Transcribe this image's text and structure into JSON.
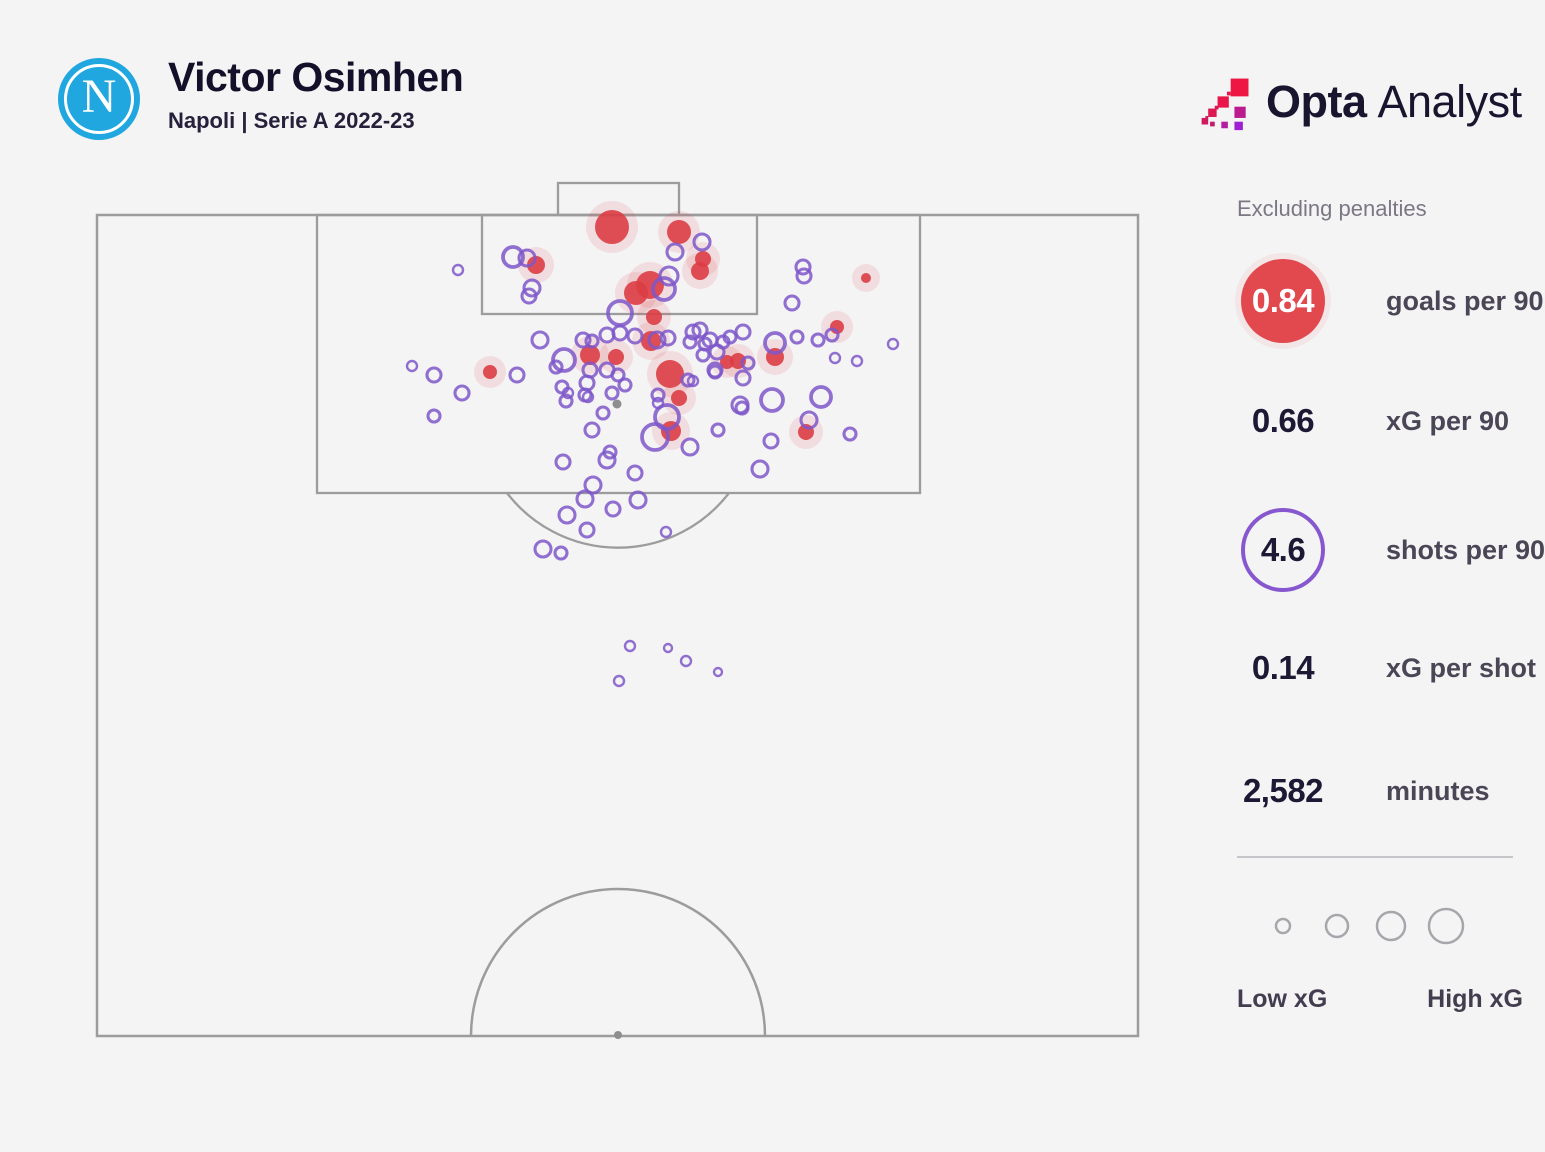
{
  "header": {
    "title": "Victor Osimhen",
    "subtitle": "Napoli | Serie A 2022-23",
    "badge_letter": "N"
  },
  "brand": {
    "name_bold": "Opta",
    "name_light": "Analyst"
  },
  "stats": {
    "context_label": "Excluding penalties",
    "items": [
      {
        "value": "0.84",
        "label": "goals per 90",
        "marker": "red-filled-circle"
      },
      {
        "value": "0.66",
        "label": "xG per 90",
        "marker": "none"
      },
      {
        "value": "4.6",
        "label": "shots per 90",
        "marker": "purple-ring-circle"
      },
      {
        "value": "0.14",
        "label": "xG per shot",
        "marker": "none"
      },
      {
        "value": "2,582",
        "label": "minutes",
        "marker": "none"
      }
    ]
  },
  "legend": {
    "low_label": "Low xG",
    "high_label": "High xG",
    "circle_radii": [
      7,
      11,
      14,
      17
    ]
  },
  "colors": {
    "background": "#f4f4f5",
    "pitch_line": "#9c9c9c",
    "goal_red": "#dc3d45",
    "shot_purple": "#7e57c9",
    "spot_gray": "#8e8e8e",
    "napoli_blue": "#21a7e0",
    "accent_dark": "#1d1834",
    "label_gray": "#4b4656",
    "muted_gray": "#7c7784",
    "legend_gray": "#a8a6ab"
  },
  "chart_data": {
    "type": "scatter",
    "title": "Victor Osimhen non-penalty shot map, Serie A 2022-23",
    "coordinate_space": "screen pixels of 1536x1152 canvas, attacking toward top goal",
    "marker_encoding": "radius = xG of shot; red filled = goal; purple ring = non-goal shot",
    "penalty_spot": [
      617,
      404
    ],
    "center_spot": [
      618,
      1035
    ],
    "goals": [
      [
        612,
        227,
        17
      ],
      [
        679,
        232,
        12
      ],
      [
        536,
        265,
        9
      ],
      [
        703,
        259,
        8
      ],
      [
        700,
        271,
        9
      ],
      [
        650,
        285,
        14
      ],
      [
        636,
        293,
        12
      ],
      [
        654,
        317,
        8
      ],
      [
        651,
        341,
        10
      ],
      [
        590,
        355,
        10
      ],
      [
        616,
        357,
        8
      ],
      [
        490,
        372,
        7
      ],
      [
        670,
        374,
        14
      ],
      [
        679,
        398,
        8
      ],
      [
        671,
        431,
        10
      ],
      [
        738,
        361,
        8
      ],
      [
        775,
        357,
        9
      ],
      [
        837,
        327,
        7
      ],
      [
        866,
        278,
        5
      ],
      [
        806,
        432,
        8
      ],
      [
        727,
        362,
        7
      ]
    ],
    "shots": [
      [
        513,
        257,
        10
      ],
      [
        527,
        258,
        8
      ],
      [
        458,
        270,
        5
      ],
      [
        532,
        288,
        8
      ],
      [
        529,
        296,
        7
      ],
      [
        675,
        252,
        8
      ],
      [
        702,
        242,
        8
      ],
      [
        669,
        276,
        9
      ],
      [
        664,
        289,
        11
      ],
      [
        620,
        313,
        12
      ],
      [
        803,
        267,
        7
      ],
      [
        804,
        276,
        7
      ],
      [
        792,
        303,
        7
      ],
      [
        893,
        344,
        5
      ],
      [
        583,
        340,
        7
      ],
      [
        592,
        341,
        6
      ],
      [
        607,
        335,
        7
      ],
      [
        620,
        333,
        7
      ],
      [
        635,
        336,
        7
      ],
      [
        657,
        340,
        8
      ],
      [
        668,
        338,
        7
      ],
      [
        693,
        332,
        7
      ],
      [
        700,
        330,
        7
      ],
      [
        710,
        340,
        7
      ],
      [
        717,
        352,
        7
      ],
      [
        723,
        342,
        6
      ],
      [
        730,
        337,
        6
      ],
      [
        743,
        332,
        7
      ],
      [
        690,
        342,
        6
      ],
      [
        705,
        344,
        6
      ],
      [
        703,
        355,
        6
      ],
      [
        748,
        363,
        6
      ],
      [
        743,
        378,
        7
      ],
      [
        715,
        372,
        6
      ],
      [
        693,
        381,
        5
      ],
      [
        775,
        343,
        10
      ],
      [
        797,
        337,
        6
      ],
      [
        818,
        340,
        6
      ],
      [
        832,
        335,
        6
      ],
      [
        835,
        358,
        5
      ],
      [
        857,
        361,
        5
      ],
      [
        412,
        366,
        5
      ],
      [
        434,
        375,
        7
      ],
      [
        462,
        393,
        7
      ],
      [
        434,
        416,
        6
      ],
      [
        517,
        375,
        7
      ],
      [
        540,
        340,
        8
      ],
      [
        564,
        360,
        11
      ],
      [
        556,
        367,
        6
      ],
      [
        562,
        387,
        6
      ],
      [
        568,
        393,
        5
      ],
      [
        566,
        401,
        6
      ],
      [
        587,
        383,
        7
      ],
      [
        585,
        395,
        6
      ],
      [
        592,
        430,
        7
      ],
      [
        563,
        462,
        7
      ],
      [
        590,
        370,
        7
      ],
      [
        607,
        370,
        7
      ],
      [
        618,
        375,
        6
      ],
      [
        625,
        385,
        6
      ],
      [
        612,
        393,
        6
      ],
      [
        603,
        413,
        6
      ],
      [
        588,
        397,
        5
      ],
      [
        658,
        395,
        6
      ],
      [
        658,
        403,
        5
      ],
      [
        688,
        380,
        6
      ],
      [
        667,
        417,
        12
      ],
      [
        655,
        437,
        13
      ],
      [
        690,
        447,
        8
      ],
      [
        715,
        370,
        7
      ],
      [
        740,
        405,
        8
      ],
      [
        772,
        400,
        11
      ],
      [
        718,
        430,
        6
      ],
      [
        809,
        420,
        8
      ],
      [
        771,
        441,
        7
      ],
      [
        850,
        434,
        6
      ],
      [
        821,
        397,
        10
      ],
      [
        742,
        408,
        6
      ],
      [
        607,
        460,
        8
      ],
      [
        610,
        452,
        6
      ],
      [
        635,
        473,
        7
      ],
      [
        760,
        469,
        8
      ],
      [
        593,
        485,
        8
      ],
      [
        585,
        499,
        8
      ],
      [
        638,
        500,
        8
      ],
      [
        613,
        509,
        7
      ],
      [
        567,
        515,
        8
      ],
      [
        587,
        530,
        7
      ],
      [
        666,
        532,
        5
      ],
      [
        543,
        549,
        8
      ],
      [
        561,
        553,
        6
      ],
      [
        630,
        646,
        5
      ],
      [
        668,
        648,
        4
      ],
      [
        686,
        661,
        5
      ],
      [
        718,
        672,
        4
      ],
      [
        619,
        681,
        5
      ]
    ],
    "pitch_geometry": {
      "outer": [
        97,
        215,
        1041,
        821
      ],
      "penalty_box": [
        317,
        215,
        603,
        278
      ],
      "six_yard_box": [
        482,
        215,
        275,
        99
      ],
      "goal_frame": [
        558,
        183,
        121,
        32
      ]
    }
  }
}
